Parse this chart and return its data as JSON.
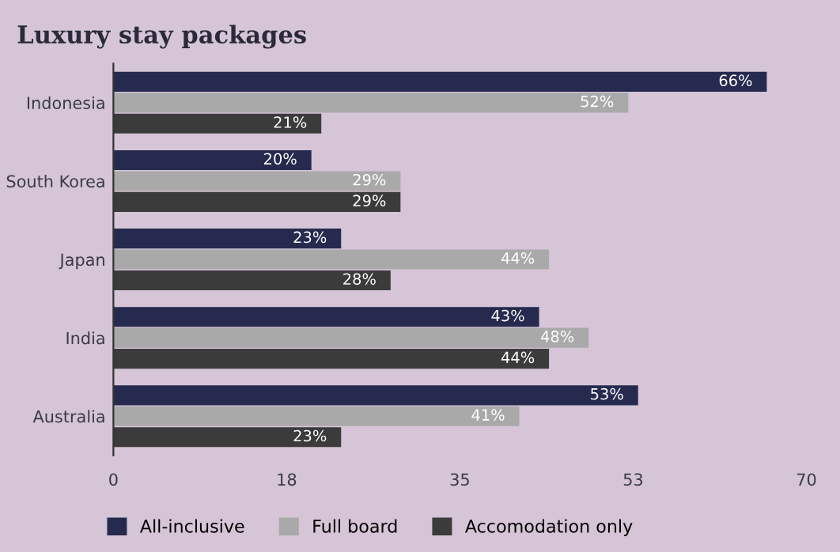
{
  "chart_data": {
    "type": "bar",
    "orientation": "horizontal",
    "title": "Luxury stay packages",
    "categories": [
      "Indonesia",
      "South Korea",
      "Japan",
      "India",
      "Australia"
    ],
    "series": [
      {
        "name": "All-inclusive",
        "color": "#262a4e",
        "values": [
          66,
          20,
          23,
          43,
          53
        ],
        "value_labels": [
          "66%",
          "20%",
          "23%",
          "43%",
          "53%"
        ]
      },
      {
        "name": "Full board",
        "color": "#a9a9aa",
        "values": [
          52,
          29,
          44,
          48,
          41
        ],
        "value_labels": [
          "52%",
          "29%",
          "44%",
          "48%",
          "41%"
        ]
      },
      {
        "name": "Accomodation only",
        "color": "#3b3b3b",
        "values": [
          21,
          29,
          28,
          44,
          23
        ],
        "value_labels": [
          "21%",
          "29%",
          "28%",
          "44%",
          "23%"
        ]
      }
    ],
    "xlim": [
      0,
      70
    ],
    "xticks": [
      0,
      {
        "value": 17.5,
        "label": "18"
      },
      35,
      {
        "value": 52.5,
        "label": "53"
      },
      70
    ],
    "grid": false,
    "legend": "bottom"
  }
}
